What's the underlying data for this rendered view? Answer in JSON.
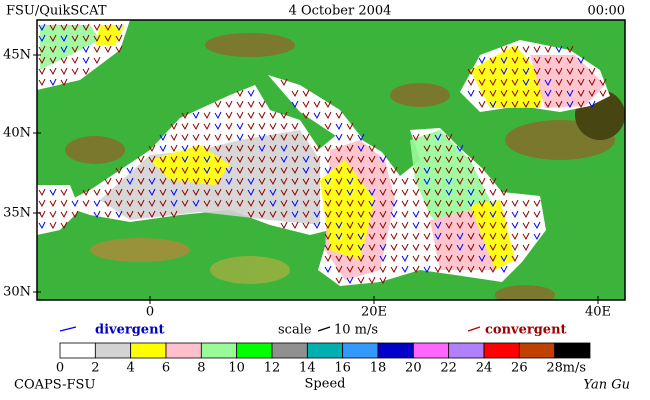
{
  "header": {
    "left": "FSU/QuikSCAT",
    "center": "4 October 2004",
    "right": "00:00"
  },
  "map": {
    "lat_labels": [
      "45N",
      "40N",
      "35N",
      "30N"
    ],
    "lon_labels": [
      "0",
      "20E",
      "40E"
    ]
  },
  "legend": {
    "divergent": "divergent",
    "scale": "scale",
    "scale_value": "10 m/s",
    "convergent": "convergent"
  },
  "colorbar": {
    "ticks": [
      0,
      2,
      4,
      6,
      8,
      10,
      12,
      14,
      16,
      18,
      20,
      22,
      24,
      26,
      28
    ],
    "unit": "m/s",
    "label": "Speed",
    "colors": [
      "#ffffff",
      "#d3d3d3",
      "#ffff00",
      "#ffc0cb",
      "#98fb98",
      "#00ff00",
      "#909090",
      "#00b0b0",
      "#3399ff",
      "#0000c8",
      "#ff66ff",
      "#b080ff",
      "#ff0000",
      "#c04000",
      "#000000"
    ]
  },
  "footer": {
    "left": "COAPS-FSU",
    "right": "Yan Gu"
  }
}
